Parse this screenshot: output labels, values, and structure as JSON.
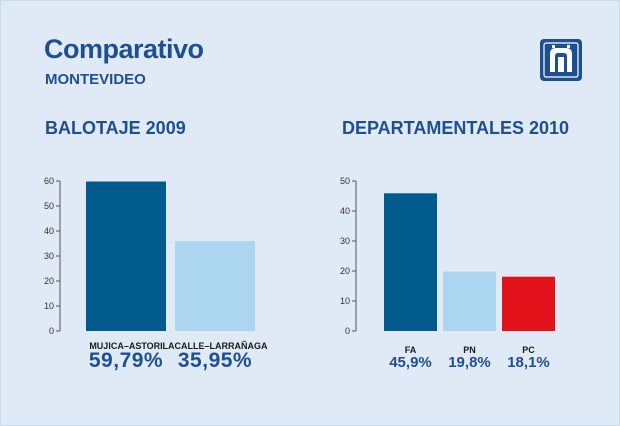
{
  "header": {
    "title": "Comparativo",
    "subtitle": "MONTEVIDEO"
  },
  "colors": {
    "background": "#dfeaf6",
    "title": "#1e4f91",
    "dark_blue": "#005a8c",
    "light_blue": "#acd6f0",
    "red": "#e3131b",
    "logo_bg": "#1e4f91"
  },
  "logo": {
    "icon": "montevideo-logo-icon"
  },
  "chart_data": [
    {
      "type": "bar",
      "title": "BALOTAJE 2009",
      "categories": [
        "MUJICA–ASTORI",
        "LACALLE–LARRAÑAGA"
      ],
      "values": [
        59.79,
        35.95
      ],
      "value_labels": [
        "59,79%",
        "35,95%"
      ],
      "colors": [
        "#005a8c",
        "#acd6f0"
      ],
      "ylim": [
        0,
        60
      ],
      "yticks": [
        "0",
        "10",
        "20",
        "30",
        "40",
        "50",
        "60"
      ],
      "xlabel": "",
      "ylabel": ""
    },
    {
      "type": "bar",
      "title": "DEPARTAMENTALES 2010",
      "categories": [
        "FA",
        "PN",
        "PC"
      ],
      "values": [
        45.9,
        19.8,
        18.1
      ],
      "value_labels": [
        "45,9%",
        "19,8%",
        "18,1%"
      ],
      "colors": [
        "#005a8c",
        "#acd6f0",
        "#e3131b"
      ],
      "ylim": [
        0,
        50
      ],
      "yticks": [
        "0",
        "10",
        "20",
        "30",
        "40",
        "50"
      ],
      "xlabel": "",
      "ylabel": ""
    }
  ]
}
